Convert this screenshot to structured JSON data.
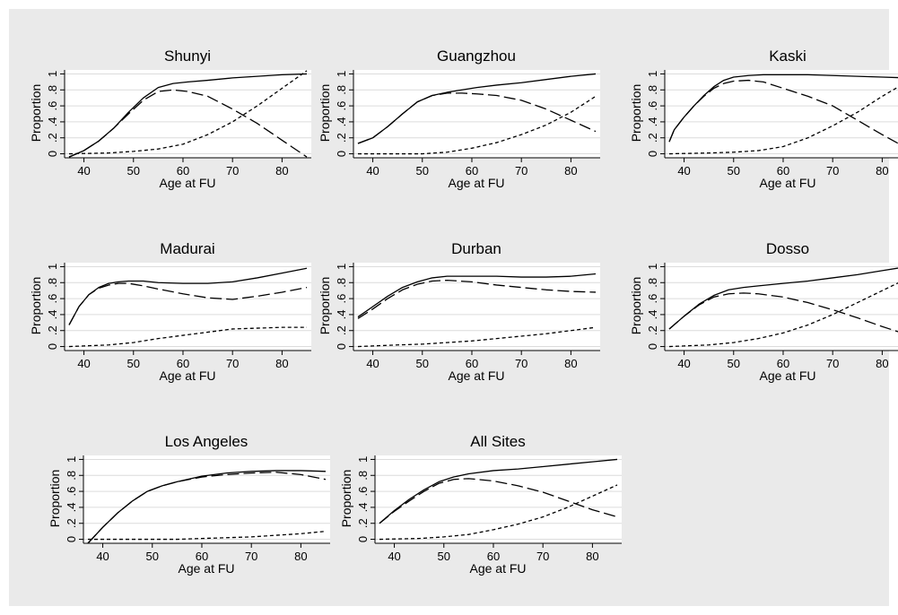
{
  "colors": {
    "outer_background": "#eaeaea",
    "plot_background": "#ffffff",
    "gridline": "#dcdcdc",
    "line": "#000000"
  },
  "chart_data": [
    {
      "type": "line",
      "title": "Shunyi",
      "xlabel": "Age at FU",
      "ylabel": "Proportion",
      "xlim": [
        37,
        85
      ],
      "ylim": [
        -0.05,
        1.05
      ],
      "x_ticks": [
        40,
        50,
        60,
        70,
        80
      ],
      "x_tick_labels": [
        "40",
        "50",
        "60",
        "70",
        "80"
      ],
      "y_ticks": [
        0,
        0.2,
        0.4,
        0.6,
        0.8,
        1
      ],
      "y_tick_labels": [
        "0",
        ".2",
        ".4",
        ".6",
        ".8",
        "1"
      ],
      "grid": true,
      "legend": "none",
      "series": [
        {
          "style": "solid",
          "x": [
            37,
            40,
            43,
            46,
            49,
            52,
            55,
            58,
            61,
            65,
            70,
            75,
            80,
            85
          ],
          "y": [
            -0.04,
            0.04,
            0.16,
            0.32,
            0.52,
            0.7,
            0.83,
            0.88,
            0.9,
            0.92,
            0.95,
            0.97,
            0.99,
            1.0
          ]
        },
        {
          "style": "long-dash",
          "x": [
            37,
            40,
            43,
            46,
            49,
            52,
            55,
            58,
            61,
            65,
            70,
            75,
            80,
            85
          ],
          "y": [
            -0.04,
            0.04,
            0.16,
            0.32,
            0.5,
            0.67,
            0.78,
            0.8,
            0.78,
            0.72,
            0.56,
            0.38,
            0.17,
            -0.04
          ]
        },
        {
          "style": "short-dash",
          "x": [
            37,
            45,
            50,
            55,
            60,
            65,
            70,
            75,
            80,
            85
          ],
          "y": [
            0.0,
            0.01,
            0.03,
            0.06,
            0.12,
            0.24,
            0.4,
            0.6,
            0.82,
            1.04
          ]
        }
      ]
    },
    {
      "type": "line",
      "title": "Guangzhou",
      "xlabel": "Age at FU",
      "ylabel": "Proportion",
      "xlim": [
        37,
        85
      ],
      "ylim": [
        -0.05,
        1.05
      ],
      "x_ticks": [
        40,
        50,
        60,
        70,
        80
      ],
      "x_tick_labels": [
        "40",
        "50",
        "60",
        "70",
        "80"
      ],
      "y_ticks": [
        0,
        0.2,
        0.4,
        0.6,
        0.8,
        1
      ],
      "y_tick_labels": [
        "0",
        ".2",
        ".4",
        ".6",
        ".8",
        "1"
      ],
      "grid": true,
      "legend": "none",
      "series": [
        {
          "style": "solid",
          "x": [
            37,
            40,
            43,
            46,
            49,
            52,
            55,
            58,
            61,
            65,
            70,
            75,
            80,
            85
          ],
          "y": [
            0.13,
            0.2,
            0.34,
            0.5,
            0.65,
            0.73,
            0.77,
            0.8,
            0.83,
            0.86,
            0.89,
            0.93,
            0.97,
            1.0
          ]
        },
        {
          "style": "long-dash",
          "x": [
            37,
            40,
            43,
            46,
            49,
            52,
            55,
            58,
            61,
            65,
            70,
            75,
            80,
            85
          ],
          "y": [
            0.13,
            0.2,
            0.34,
            0.5,
            0.65,
            0.73,
            0.76,
            0.76,
            0.75,
            0.73,
            0.67,
            0.56,
            0.42,
            0.28
          ]
        },
        {
          "style": "short-dash",
          "x": [
            37,
            45,
            50,
            55,
            60,
            65,
            70,
            75,
            80,
            85
          ],
          "y": [
            0.0,
            0.0,
            0.0,
            0.02,
            0.07,
            0.14,
            0.24,
            0.36,
            0.52,
            0.72
          ]
        }
      ]
    },
    {
      "type": "line",
      "title": "Kaski",
      "xlabel": "Age at FU",
      "ylabel": "Proportion",
      "xlim": [
        37,
        85
      ],
      "ylim": [
        -0.05,
        1.05
      ],
      "x_ticks": [
        40,
        50,
        60,
        70,
        80
      ],
      "x_tick_labels": [
        "40",
        "50",
        "60",
        "70",
        "80"
      ],
      "y_ticks": [
        0,
        0.2,
        0.4,
        0.6,
        0.8,
        1
      ],
      "y_tick_labels": [
        "0",
        ".2",
        ".4",
        ".6",
        ".8",
        "1"
      ],
      "grid": true,
      "legend": "none",
      "series": [
        {
          "style": "solid",
          "x": [
            37,
            38,
            40,
            42,
            44,
            46,
            48,
            50,
            53,
            56,
            60,
            65,
            70,
            75,
            80,
            85
          ],
          "y": [
            0.15,
            0.3,
            0.46,
            0.6,
            0.73,
            0.84,
            0.92,
            0.96,
            0.98,
            0.99,
            0.99,
            0.99,
            0.98,
            0.97,
            0.96,
            0.95
          ]
        },
        {
          "style": "long-dash",
          "x": [
            37,
            38,
            40,
            42,
            44,
            46,
            48,
            50,
            53,
            56,
            60,
            65,
            70,
            75,
            80,
            85
          ],
          "y": [
            0.15,
            0.3,
            0.46,
            0.6,
            0.72,
            0.82,
            0.88,
            0.91,
            0.92,
            0.9,
            0.82,
            0.72,
            0.6,
            0.42,
            0.24,
            0.07
          ]
        },
        {
          "style": "short-dash",
          "x": [
            37,
            45,
            50,
            55,
            60,
            65,
            70,
            75,
            80,
            85
          ],
          "y": [
            0.0,
            0.01,
            0.02,
            0.04,
            0.09,
            0.2,
            0.35,
            0.52,
            0.72,
            0.9
          ]
        }
      ]
    },
    {
      "type": "line",
      "title": "Madurai",
      "xlabel": "Age at FU",
      "ylabel": "Proportion",
      "xlim": [
        37,
        85
      ],
      "ylim": [
        -0.05,
        1.05
      ],
      "x_ticks": [
        40,
        50,
        60,
        70,
        80
      ],
      "x_tick_labels": [
        "40",
        "50",
        "60",
        "70",
        "80"
      ],
      "y_ticks": [
        0,
        0.2,
        0.4,
        0.6,
        0.8,
        1
      ],
      "y_tick_labels": [
        "0",
        ".2",
        ".4",
        ".6",
        ".8",
        "1"
      ],
      "grid": true,
      "legend": "none",
      "series": [
        {
          "style": "solid",
          "x": [
            37,
            39,
            41,
            43,
            45,
            47,
            49,
            52,
            55,
            60,
            65,
            70,
            75,
            80,
            85
          ],
          "y": [
            0.27,
            0.5,
            0.65,
            0.74,
            0.79,
            0.81,
            0.82,
            0.82,
            0.8,
            0.79,
            0.79,
            0.81,
            0.86,
            0.92,
            0.98
          ]
        },
        {
          "style": "long-dash",
          "x": [
            37,
            39,
            41,
            43,
            45,
            47,
            49,
            52,
            55,
            60,
            65,
            70,
            75,
            80,
            85
          ],
          "y": [
            0.27,
            0.5,
            0.65,
            0.73,
            0.77,
            0.79,
            0.79,
            0.76,
            0.72,
            0.66,
            0.61,
            0.59,
            0.63,
            0.68,
            0.74
          ]
        },
        {
          "style": "short-dash",
          "x": [
            37,
            45,
            50,
            55,
            60,
            65,
            70,
            75,
            80,
            85
          ],
          "y": [
            0.0,
            0.02,
            0.05,
            0.1,
            0.14,
            0.18,
            0.22,
            0.23,
            0.24,
            0.24
          ]
        }
      ]
    },
    {
      "type": "line",
      "title": "Durban",
      "xlabel": "Age at FU",
      "ylabel": "Proportion",
      "xlim": [
        37,
        85
      ],
      "ylim": [
        -0.05,
        1.05
      ],
      "x_ticks": [
        40,
        50,
        60,
        70,
        80
      ],
      "x_tick_labels": [
        "40",
        "50",
        "60",
        "70",
        "80"
      ],
      "y_ticks": [
        0,
        0.2,
        0.4,
        0.6,
        0.8,
        1
      ],
      "y_tick_labels": [
        "0",
        ".2",
        ".4",
        ".6",
        ".8",
        "1"
      ],
      "grid": true,
      "legend": "none",
      "series": [
        {
          "style": "solid",
          "x": [
            37,
            40,
            43,
            46,
            49,
            52,
            55,
            60,
            65,
            70,
            75,
            80,
            85
          ],
          "y": [
            0.37,
            0.5,
            0.63,
            0.74,
            0.81,
            0.86,
            0.88,
            0.88,
            0.88,
            0.87,
            0.87,
            0.88,
            0.91
          ]
        },
        {
          "style": "long-dash",
          "x": [
            37,
            40,
            43,
            46,
            49,
            52,
            55,
            60,
            65,
            70,
            75,
            80,
            85
          ],
          "y": [
            0.35,
            0.47,
            0.6,
            0.71,
            0.78,
            0.82,
            0.83,
            0.81,
            0.77,
            0.74,
            0.71,
            0.69,
            0.68
          ]
        },
        {
          "style": "short-dash",
          "x": [
            37,
            45,
            50,
            55,
            60,
            65,
            70,
            75,
            80,
            85
          ],
          "y": [
            0.0,
            0.02,
            0.03,
            0.05,
            0.07,
            0.1,
            0.13,
            0.16,
            0.2,
            0.24
          ]
        }
      ]
    },
    {
      "type": "line",
      "title": "Dosso",
      "xlabel": "Age at FU",
      "ylabel": "Proportion",
      "xlim": [
        37,
        85
      ],
      "ylim": [
        -0.05,
        1.05
      ],
      "x_ticks": [
        40,
        50,
        60,
        70,
        80
      ],
      "x_tick_labels": [
        "40",
        "50",
        "60",
        "70",
        "80"
      ],
      "y_ticks": [
        0,
        0.2,
        0.4,
        0.6,
        0.8,
        1
      ],
      "y_tick_labels": [
        "0",
        ".2",
        ".4",
        ".6",
        ".8",
        "1"
      ],
      "grid": true,
      "legend": "none",
      "series": [
        {
          "style": "solid",
          "x": [
            37,
            40,
            43,
            46,
            49,
            52,
            55,
            60,
            65,
            70,
            75,
            80,
            85
          ],
          "y": [
            0.22,
            0.38,
            0.53,
            0.64,
            0.71,
            0.74,
            0.76,
            0.79,
            0.82,
            0.86,
            0.9,
            0.95,
            1.0
          ]
        },
        {
          "style": "long-dash",
          "x": [
            37,
            40,
            43,
            46,
            49,
            52,
            55,
            60,
            65,
            70,
            75,
            80,
            85
          ],
          "y": [
            0.22,
            0.38,
            0.52,
            0.62,
            0.66,
            0.67,
            0.66,
            0.62,
            0.55,
            0.46,
            0.36,
            0.25,
            0.15
          ]
        },
        {
          "style": "short-dash",
          "x": [
            37,
            45,
            50,
            55,
            60,
            65,
            70,
            75,
            80,
            85
          ],
          "y": [
            0.0,
            0.02,
            0.05,
            0.1,
            0.17,
            0.27,
            0.4,
            0.55,
            0.7,
            0.85
          ]
        }
      ]
    },
    {
      "type": "line",
      "title": "Los Angeles",
      "xlabel": "Age at FU",
      "ylabel": "Proportion",
      "xlim": [
        37,
        85
      ],
      "ylim": [
        -0.05,
        1.05
      ],
      "x_ticks": [
        40,
        50,
        60,
        70,
        80
      ],
      "x_tick_labels": [
        "40",
        "50",
        "60",
        "70",
        "80"
      ],
      "y_ticks": [
        0,
        0.2,
        0.4,
        0.6,
        0.8,
        1
      ],
      "y_tick_labels": [
        "0",
        ".2",
        ".4",
        ".6",
        ".8",
        "1"
      ],
      "grid": true,
      "legend": "none",
      "series": [
        {
          "style": "solid",
          "x": [
            37,
            40,
            43,
            46,
            49,
            52,
            55,
            60,
            65,
            70,
            75,
            80,
            85
          ],
          "y": [
            -0.05,
            0.15,
            0.33,
            0.48,
            0.6,
            0.67,
            0.72,
            0.79,
            0.83,
            0.85,
            0.86,
            0.86,
            0.85
          ]
        },
        {
          "style": "long-dash",
          "x": [
            37,
            40,
            43,
            46,
            49,
            52,
            55,
            60,
            65,
            70,
            75,
            80,
            85
          ],
          "y": [
            -0.05,
            0.15,
            0.33,
            0.48,
            0.6,
            0.67,
            0.72,
            0.78,
            0.81,
            0.83,
            0.84,
            0.81,
            0.75
          ]
        },
        {
          "style": "short-dash",
          "x": [
            37,
            45,
            50,
            55,
            60,
            65,
            70,
            75,
            80,
            85
          ],
          "y": [
            0.0,
            0.0,
            0.0,
            0.0,
            0.01,
            0.02,
            0.03,
            0.05,
            0.07,
            0.1
          ]
        }
      ]
    },
    {
      "type": "line",
      "title": "All Sites",
      "xlabel": "Age at FU",
      "ylabel": "Proportion",
      "xlim": [
        37,
        85
      ],
      "ylim": [
        -0.05,
        1.05
      ],
      "x_ticks": [
        40,
        50,
        60,
        70,
        80
      ],
      "x_tick_labels": [
        "40",
        "50",
        "60",
        "70",
        "80"
      ],
      "y_ticks": [
        0,
        0.2,
        0.4,
        0.6,
        0.8,
        1
      ],
      "y_tick_labels": [
        "0",
        ".2",
        ".4",
        ".6",
        ".8",
        "1"
      ],
      "grid": true,
      "legend": "none",
      "series": [
        {
          "style": "solid",
          "x": [
            37,
            40,
            43,
            46,
            49,
            52,
            55,
            60,
            65,
            70,
            75,
            80,
            85
          ],
          "y": [
            0.2,
            0.36,
            0.5,
            0.62,
            0.72,
            0.78,
            0.82,
            0.86,
            0.88,
            0.91,
            0.94,
            0.97,
            1.0
          ]
        },
        {
          "style": "long-dash",
          "x": [
            37,
            40,
            43,
            46,
            49,
            52,
            55,
            60,
            65,
            70,
            75,
            80,
            85
          ],
          "y": [
            0.2,
            0.35,
            0.48,
            0.6,
            0.7,
            0.75,
            0.76,
            0.73,
            0.67,
            0.59,
            0.48,
            0.37,
            0.28
          ]
        },
        {
          "style": "short-dash",
          "x": [
            37,
            45,
            50,
            55,
            60,
            65,
            70,
            75,
            80,
            85
          ],
          "y": [
            0.0,
            0.01,
            0.03,
            0.06,
            0.12,
            0.19,
            0.28,
            0.4,
            0.54,
            0.68
          ]
        }
      ]
    }
  ]
}
